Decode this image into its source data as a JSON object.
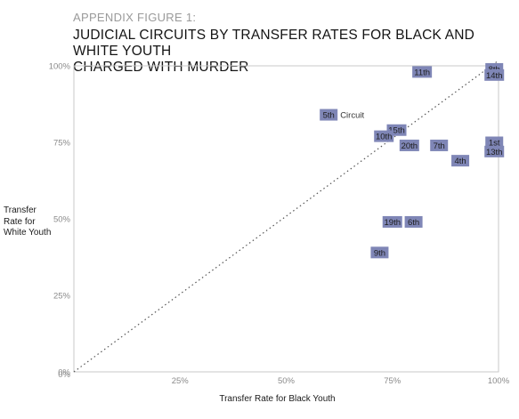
{
  "figure": {
    "kicker": "APPENDIX FIGURE 1:",
    "title_lines": [
      "JUDICIAL CIRCUITS BY TRANSFER RATES FOR BLACK AND WHITE YOUTH",
      "CHARGED WITH MURDER"
    ]
  },
  "chart_data": {
    "type": "scatter",
    "title": "JUDICIAL CIRCUITS BY TRANSFER RATES FOR BLACK AND WHITE YOUTH CHARGED WITH MURDER",
    "xlabel": "Transfer Rate for Black Youth",
    "ylabel_lines": [
      "Transfer",
      "Rate for",
      "White Youth"
    ],
    "xlim": [
      0,
      100
    ],
    "ylim": [
      0,
      100
    ],
    "x_ticks": [
      "0%",
      "25%",
      "50%",
      "75%",
      "100%"
    ],
    "y_ticks": [
      "0%",
      "25%",
      "50%",
      "75%",
      "100%"
    ],
    "x_tick_values": [
      0,
      25,
      50,
      75,
      100
    ],
    "y_tick_values": [
      0,
      25,
      50,
      75,
      100
    ],
    "reference_line": "diagonal y = x",
    "grid": false,
    "marker_color": "#7f86b6",
    "points": [
      {
        "label": "5th",
        "x": 60,
        "y": 84,
        "annotation": "Circuit"
      },
      {
        "label": "11th",
        "x": 82,
        "y": 98
      },
      {
        "label": "8th",
        "x": 99,
        "y": 99
      },
      {
        "label": "14th",
        "x": 99,
        "y": 97
      },
      {
        "label": "15th",
        "x": 76,
        "y": 79
      },
      {
        "label": "10th",
        "x": 73,
        "y": 77
      },
      {
        "label": "20th",
        "x": 79,
        "y": 74
      },
      {
        "label": "7th",
        "x": 86,
        "y": 74
      },
      {
        "label": "1st",
        "x": 99,
        "y": 75
      },
      {
        "label": "13th",
        "x": 99,
        "y": 72
      },
      {
        "label": "4th",
        "x": 91,
        "y": 69
      },
      {
        "label": "19th",
        "x": 75,
        "y": 49
      },
      {
        "label": "6th",
        "x": 80,
        "y": 49
      },
      {
        "label": "9th",
        "x": 72,
        "y": 39
      }
    ]
  }
}
